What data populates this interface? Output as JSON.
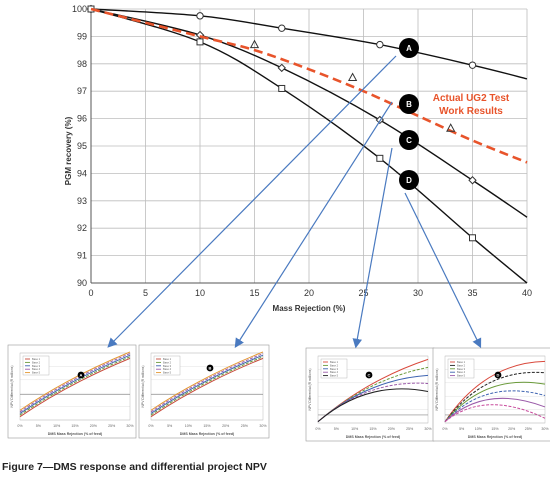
{
  "chart_data": [
    {
      "type": "line",
      "title": "",
      "xlabel": "Mass Rejection (%)",
      "ylabel": "PGM recovery (%)",
      "xlim": [
        0,
        40
      ],
      "ylim": [
        90,
        100
      ],
      "x_ticks": [
        "0",
        "5",
        "10",
        "15",
        "20",
        "25",
        "30",
        "35",
        "40"
      ],
      "y_ticks": [
        "90",
        "91",
        "92",
        "93",
        "94",
        "95",
        "96",
        "97",
        "98",
        "99",
        "100"
      ],
      "grid": true,
      "series": [
        {
          "name": "A",
          "color": "#111111",
          "marker": "circle",
          "style": "solid",
          "points": [
            [
              0,
              100
            ],
            [
              10,
              99.75
            ],
            [
              17.5,
              99.3
            ],
            [
              26.5,
              98.7
            ],
            [
              35,
              97.95
            ],
            [
              40,
              97.45
            ]
          ],
          "marker_points": [
            [
              0,
              100
            ],
            [
              10,
              99.75
            ],
            [
              17.5,
              99.3
            ],
            [
              26.5,
              98.7
            ],
            [
              35,
              97.95
            ]
          ]
        },
        {
          "name": "B",
          "color": "#111111",
          "marker": "diamond",
          "style": "solid",
          "points": [
            [
              0,
              100
            ],
            [
              10,
              99.05
            ],
            [
              17.5,
              97.85
            ],
            [
              26.5,
              95.95
            ],
            [
              35,
              93.75
            ],
            [
              40,
              92.4
            ]
          ],
          "marker_points": [
            [
              0,
              100
            ],
            [
              10,
              99.05
            ],
            [
              17.5,
              97.85
            ],
            [
              26.5,
              95.95
            ],
            [
              35,
              93.75
            ]
          ]
        },
        {
          "name": "C",
          "color": "#111111",
          "marker": "square",
          "style": "solid",
          "points": [
            [
              0,
              100
            ],
            [
              10,
              98.8
            ],
            [
              17.5,
              97.1
            ],
            [
              26.5,
              94.55
            ],
            [
              35,
              91.65
            ],
            [
              40,
              90
            ]
          ],
          "marker_points": [
            [
              0,
              100
            ],
            [
              10,
              98.8
            ],
            [
              17.5,
              97.1
            ],
            [
              26.5,
              94.55
            ],
            [
              35,
              91.65
            ]
          ]
        },
        {
          "name": "Actual UG2 Test Work Results",
          "color": "#e8542b",
          "marker": "triangle",
          "style": "dashed",
          "points": [
            [
              0,
              100
            ],
            [
              10,
              99.0
            ],
            [
              15,
              98.5
            ],
            [
              20,
              97.8
            ],
            [
              25,
              97.0
            ],
            [
              30,
              96.1
            ],
            [
              35,
              95.2
            ],
            [
              40,
              94.4
            ]
          ],
          "marker_points": [
            [
              15,
              98.7
            ],
            [
              24,
              97.5
            ],
            [
              33,
              95.65
            ]
          ]
        }
      ],
      "labels": [
        "A",
        "B",
        "C",
        "D"
      ],
      "annotation": [
        "Actual UG2 Test",
        "Work Results"
      ]
    },
    {
      "type": "line",
      "title": "",
      "xlabel": "DMS Mass Rejection (% of feed)",
      "ylabel": "NPV Differential (R millions)",
      "marker_label": "A",
      "legend": [
        "Base 1",
        "Base 2",
        "Base 3",
        "Base 4",
        "Base 5"
      ],
      "x_ticks": [
        "0%",
        "5%",
        "10%",
        "15%",
        "20%",
        "25%",
        "30%"
      ],
      "series_colors": [
        "#c84a3c",
        "#6a9a3a",
        "#3c62b0",
        "#9a5aa8",
        "#e3962e"
      ]
    },
    {
      "type": "line",
      "title": "",
      "xlabel": "DMS Mass Rejection (% of feed)",
      "ylabel": "NPV Differential (R millions)",
      "marker_label": "B",
      "legend": [
        "Base 1",
        "Base 2",
        "Base 3",
        "Base 4",
        "Base 5"
      ],
      "x_ticks": [
        "0%",
        "5%",
        "10%",
        "15%",
        "20%",
        "25%",
        "30%"
      ],
      "series_colors": [
        "#c84a3c",
        "#6a9a3a",
        "#3c62b0",
        "#9a5aa8",
        "#e3962e"
      ]
    },
    {
      "type": "line",
      "title": "",
      "xlabel": "DMS Mass Rejection (% of feed)",
      "ylabel": "NPV Differential (R millions)",
      "marker_label": "C",
      "legend": [
        "Base 1",
        "Base 2",
        "Base 3",
        "Base 4",
        "Base 5"
      ],
      "x_ticks": [
        "0%",
        "5%",
        "10%",
        "15%",
        "20%",
        "25%",
        "30%"
      ],
      "series_colors": [
        "#d9483b",
        "#6a9a3a",
        "#3c62b0",
        "#9a5aa8",
        "#222222"
      ]
    },
    {
      "type": "line",
      "title": "",
      "xlabel": "DMS Mass Rejection (% of feed)",
      "ylabel": "NPV Differential (R millions)",
      "marker_label": "D",
      "legend": [
        "Base 1",
        "Base 2",
        "Base 3",
        "Base 4",
        "Base 5"
      ],
      "x_ticks": [
        "0%",
        "5%",
        "10%",
        "15%",
        "20%",
        "25%",
        "30%"
      ],
      "series_colors": [
        "#d9483b",
        "#222222",
        "#6a9a3a",
        "#3c62b0",
        "#9a5aa8",
        "#c84a9c"
      ]
    }
  ],
  "arrows": [
    {
      "from": "A",
      "to_panel": 1
    },
    {
      "from": "A",
      "to_panel": 0
    },
    {
      "from": "C",
      "to_panel": 2
    },
    {
      "from": "D",
      "to_panel": 3
    }
  ],
  "caption": "Figure 7—DMS response and differential project NPV",
  "colors": {
    "arrow": "#4a7ac0",
    "dashed": "#e8542b",
    "badge": "#000000"
  }
}
